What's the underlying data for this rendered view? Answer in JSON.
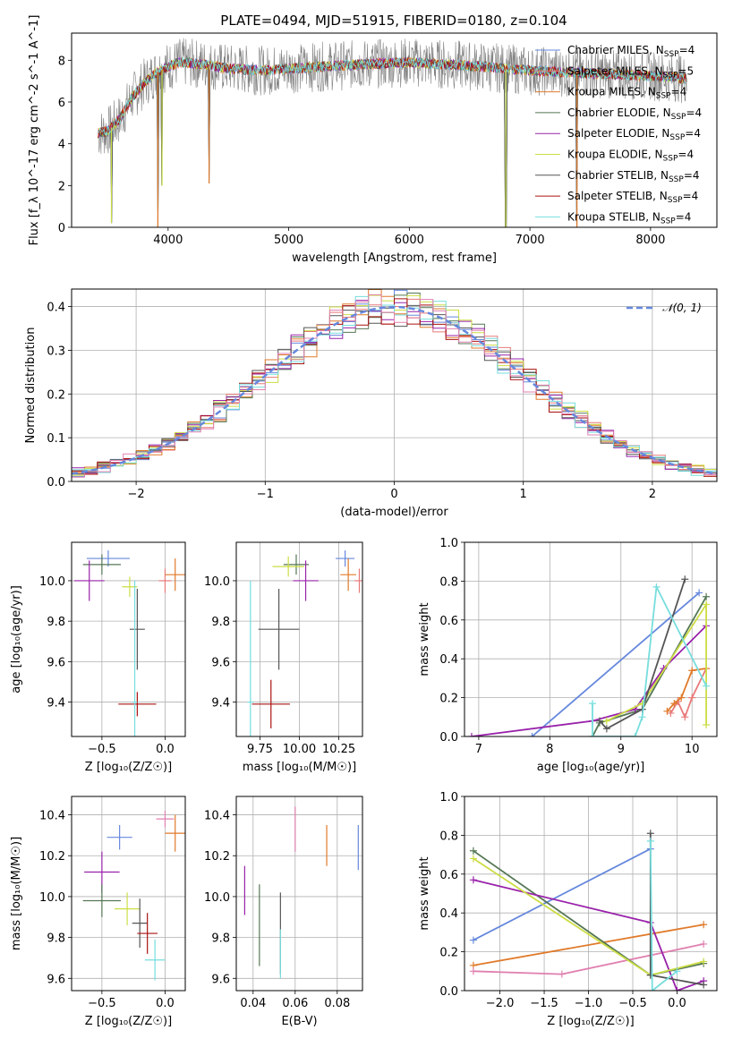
{
  "title": "PLATE=0494, MJD=51915, FIBERID=0180, z=0.104",
  "colors": {
    "Chabrier MILES": "#6688dd",
    "Salpeter MILES": "#e87a7a",
    "Kroupa MILES": "#e07a2a",
    "Chabrier ELODIE": "#557755",
    "Salpeter ELODIE": "#9922aa",
    "Kroupa ELODIE": "#ccdd44",
    "Chabrier STELIB": "#555555",
    "Salpeter STELIB": "#aa1111",
    "Kroupa STELIB": "#77dddd",
    "pink": "#e080b0",
    "gaussian": "#6688dd"
  },
  "chart_data": [
    {
      "type": "line",
      "id": "spectrum",
      "xlabel": "wavelength [Angstrom, rest frame]",
      "ylabel": "Flux [f_λ 10^-17 erg cm^-2 s^-1 A^-1]",
      "xlim": [
        3200,
        8550
      ],
      "ylim": [
        0,
        9.3
      ],
      "xticks": [
        4000,
        5000,
        6000,
        7000,
        8000
      ],
      "yticks": [
        0,
        2,
        4,
        6,
        8
      ],
      "legend_position": "upper right",
      "legend": [
        {
          "model": "Chabrier MILES",
          "nssp": "4"
        },
        {
          "model": "Salpeter MILES",
          "nssp": "5"
        },
        {
          "model": "Kroupa MILES",
          "nssp": "4"
        },
        {
          "model": "Chabrier ELODIE",
          "nssp": "4"
        },
        {
          "model": "Salpeter ELODIE",
          "nssp": "4"
        },
        {
          "model": "Kroupa ELODIE",
          "nssp": "4"
        },
        {
          "model": "Chabrier STELIB",
          "nssp": "4"
        },
        {
          "model": "Salpeter STELIB",
          "nssp": "4"
        },
        {
          "model": "Kroupa STELIB",
          "nssp": "4"
        }
      ],
      "continuum": {
        "x": [
          3420,
          3500,
          3600,
          3700,
          3800,
          3900,
          4000,
          4100,
          4300,
          4500,
          4800,
          5000,
          5300,
          5600,
          6000,
          6300,
          6600,
          7000,
          7400,
          7800,
          8200,
          8300
        ],
        "y": [
          4.5,
          4.6,
          5.2,
          6.2,
          6.9,
          7.4,
          7.7,
          7.9,
          7.8,
          7.6,
          7.5,
          7.6,
          7.7,
          7.8,
          7.9,
          7.8,
          7.7,
          7.5,
          7.4,
          7.3,
          7.2,
          7.1
        ]
      },
      "absorption_features": [
        {
          "x": 3530,
          "y": 0.2
        },
        {
          "x": 3915,
          "y": 0.0
        },
        {
          "x": 3950,
          "y": 2.0
        },
        {
          "x": 4340,
          "y": 2.1
        },
        {
          "x": 6800,
          "y": 0.0
        },
        {
          "x": 7390,
          "y": 0.0
        }
      ]
    },
    {
      "type": "bar",
      "id": "residuals",
      "xlabel": "(data-model)/error",
      "ylabel": "Normed distribution",
      "xlim": [
        -2.5,
        2.5
      ],
      "ylim": [
        0,
        0.44
      ],
      "xticks": [
        -2,
        -1,
        0,
        1,
        2
      ],
      "yticks": [
        0.0,
        0.1,
        0.2,
        0.3,
        0.4
      ],
      "legend": [
        {
          "label": "𝒩(0, 1)"
        }
      ],
      "legend_position": "upper right",
      "bin_width": 0.1,
      "gaussian": {
        "mu": 0,
        "sigma": 1
      }
    },
    {
      "type": "scatter",
      "id": "Z-age",
      "xlabel": "Z [log₁₀(Z/Z☉)]",
      "ylabel": "age [log₁₀(age/yr)]",
      "xlim": [
        -0.74,
        0.16
      ],
      "ylim": [
        9.23,
        10.19
      ],
      "xticks": [
        -0.5,
        0.0
      ],
      "yticks": [
        9.4,
        9.6,
        9.8,
        10.0
      ],
      "points": [
        {
          "model": "Chabrier MILES",
          "x": -0.45,
          "y": 10.11,
          "xerr": 0.17,
          "yerr": 0.04
        },
        {
          "model": "Salpeter MILES",
          "x": 0.0,
          "y": 10.0,
          "xerr": 0.05,
          "yerr": 0.06
        },
        {
          "model": "Kroupa MILES",
          "x": 0.08,
          "y": 10.03,
          "xerr": 0.08,
          "yerr": 0.08
        },
        {
          "model": "Chabrier ELODIE",
          "x": -0.5,
          "y": 10.08,
          "xerr": 0.15,
          "yerr": 0.05
        },
        {
          "model": "Salpeter ELODIE",
          "x": -0.6,
          "y": 10.0,
          "xerr": 0.12,
          "yerr": 0.1
        },
        {
          "model": "Kroupa ELODIE",
          "x": -0.28,
          "y": 9.97,
          "xerr": 0.06,
          "yerr": 0.05
        },
        {
          "model": "Chabrier STELIB",
          "x": -0.22,
          "y": 9.76,
          "xerr": 0.06,
          "yerr": 0.2
        },
        {
          "model": "Salpeter STELIB",
          "x": -0.22,
          "y": 9.39,
          "xerr": 0.15,
          "yerr": 0.06
        },
        {
          "model": "Kroupa STELIB",
          "x": -0.24,
          "y": 9.4,
          "xerr": 0.02,
          "yerr": 0.6
        }
      ]
    },
    {
      "type": "scatter",
      "id": "mass-age",
      "xlabel": "mass [log₁₀(M/M☉)]",
      "ylabel": "",
      "xlim": [
        9.6,
        10.4
      ],
      "ylim": [
        9.23,
        10.19
      ],
      "xticks": [
        9.75,
        10.0,
        10.25
      ],
      "yticks": [
        9.4,
        9.6,
        9.8,
        10.0
      ],
      "points": [
        {
          "model": "Chabrier MILES",
          "x": 10.29,
          "y": 10.11,
          "xerr": 0.06,
          "yerr": 0.04
        },
        {
          "model": "Salpeter MILES",
          "x": 10.38,
          "y": 10.0,
          "xerr": 0.03,
          "yerr": 0.06
        },
        {
          "model": "Kroupa MILES",
          "x": 10.31,
          "y": 10.03,
          "xerr": 0.05,
          "yerr": 0.08
        },
        {
          "model": "Chabrier ELODIE",
          "x": 9.98,
          "y": 10.08,
          "xerr": 0.08,
          "yerr": 0.05
        },
        {
          "model": "Salpeter ELODIE",
          "x": 10.04,
          "y": 10.0,
          "xerr": 0.08,
          "yerr": 0.1
        },
        {
          "model": "Kroupa ELODIE",
          "x": 9.93,
          "y": 10.07,
          "xerr": 0.1,
          "yerr": 0.05
        },
        {
          "model": "Chabrier STELIB",
          "x": 9.87,
          "y": 9.76,
          "xerr": 0.13,
          "yerr": 0.2
        },
        {
          "model": "Salpeter STELIB",
          "x": 9.82,
          "y": 9.39,
          "xerr": 0.12,
          "yerr": 0.12
        },
        {
          "model": "Kroupa STELIB",
          "x": 9.69,
          "y": 9.4,
          "xerr": 0.02,
          "yerr": 0.6
        }
      ]
    },
    {
      "type": "line",
      "id": "age-weight",
      "xlabel": "age [log₁₀(age/yr)]",
      "ylabel": "mass weight",
      "xlim": [
        6.8,
        10.35
      ],
      "ylim": [
        0,
        1.0
      ],
      "xticks": [
        7,
        8,
        9,
        10
      ],
      "yticks": [
        0.0,
        0.2,
        0.4,
        0.6,
        0.8,
        1.0
      ],
      "series": [
        {
          "model": "Chabrier MILES",
          "x": [
            7.75,
            10.1
          ],
          "y": [
            0.0,
            0.74
          ]
        },
        {
          "model": "Salpeter MILES",
          "x": [
            9.7,
            9.8,
            9.9,
            10.0,
            10.2
          ],
          "y": [
            0.12,
            0.18,
            0.1,
            0.2,
            0.35
          ]
        },
        {
          "model": "Kroupa MILES",
          "x": [
            9.65,
            9.75,
            9.85,
            10.0,
            10.2
          ],
          "y": [
            0.13,
            0.17,
            0.2,
            0.34,
            0.35
          ]
        },
        {
          "model": "Chabrier ELODIE",
          "x": [
            8.6,
            8.7,
            9.3,
            10.2
          ],
          "y": [
            0.0,
            0.07,
            0.14,
            0.72
          ]
        },
        {
          "model": "Salpeter ELODIE",
          "x": [
            6.9,
            8.6,
            9.2,
            9.6,
            10.2
          ],
          "y": [
            0.0,
            0.08,
            0.14,
            0.35,
            0.57
          ]
        },
        {
          "model": "Kroupa ELODIE",
          "x": [
            8.8,
            9.3,
            10.2,
            10.2
          ],
          "y": [
            0.08,
            0.17,
            0.68,
            0.06
          ]
        },
        {
          "model": "Chabrier STELIB",
          "x": [
            8.7,
            8.8,
            9.3,
            9.9
          ],
          "y": [
            0.08,
            0.04,
            0.14,
            0.81
          ]
        },
        {
          "model": "Kroupa STELIB",
          "x": [
            8.6,
            8.6,
            9.2,
            9.3,
            9.5,
            10.2
          ],
          "y": [
            0.17,
            0.0,
            0.0,
            0.1,
            0.77,
            0.26
          ]
        }
      ]
    },
    {
      "type": "scatter",
      "id": "Z-mass",
      "xlabel": "Z [log₁₀(Z/Z☉)]",
      "ylabel": "mass [log₁₀(M/M☉)]",
      "xlim": [
        -0.74,
        0.16
      ],
      "ylim": [
        9.54,
        10.49
      ],
      "xticks": [
        -0.5,
        0.0
      ],
      "yticks": [
        9.6,
        9.8,
        10.0,
        10.2,
        10.4
      ],
      "points": [
        {
          "model": "Chabrier MILES",
          "x": -0.36,
          "y": 10.29,
          "xerr": 0.1,
          "yerr": 0.06
        },
        {
          "model": "pink",
          "x": 0.0,
          "y": 10.38,
          "xerr": 0.07,
          "yerr": 0.04
        },
        {
          "model": "Kroupa MILES",
          "x": 0.08,
          "y": 10.31,
          "xerr": 0.08,
          "yerr": 0.09
        },
        {
          "model": "Salpeter ELODIE",
          "x": -0.5,
          "y": 10.12,
          "xerr": 0.14,
          "yerr": 0.1
        },
        {
          "model": "Chabrier ELODIE",
          "x": -0.5,
          "y": 9.98,
          "xerr": 0.15,
          "yerr": 0.08
        },
        {
          "model": "Kroupa ELODIE",
          "x": -0.3,
          "y": 9.94,
          "xerr": 0.1,
          "yerr": 0.08
        },
        {
          "model": "Chabrier STELIB",
          "x": -0.2,
          "y": 9.87,
          "xerr": 0.06,
          "yerr": 0.12
        },
        {
          "model": "Salpeter STELIB",
          "x": -0.14,
          "y": 9.82,
          "xerr": 0.08,
          "yerr": 0.1
        },
        {
          "model": "Kroupa STELIB",
          "x": -0.08,
          "y": 9.69,
          "xerr": 0.08,
          "yerr": 0.1
        }
      ]
    },
    {
      "type": "scatter",
      "id": "EBV-mass",
      "xlabel": "E(B-V)",
      "ylabel": "",
      "xlim": [
        0.032,
        0.092
      ],
      "ylim": [
        9.54,
        10.49
      ],
      "xticks": [
        0.04,
        0.06,
        0.08
      ],
      "yticks": [
        9.6,
        9.8,
        10.0,
        10.2,
        10.4
      ],
      "points": [
        {
          "model": "Salpeter ELODIE",
          "x": 0.036,
          "y": 10.03,
          "xerr": 0,
          "yerr": 0.12
        },
        {
          "model": "Chabrier ELODIE",
          "x": 0.043,
          "y": 9.86,
          "xerr": 0,
          "yerr": 0.2
        },
        {
          "model": "Chabrier STELIB",
          "x": 0.053,
          "y": 9.82,
          "xerr": 0,
          "yerr": 0.2
        },
        {
          "model": "Kroupa STELIB",
          "x": 0.053,
          "y": 9.72,
          "xerr": 0,
          "yerr": 0.12
        },
        {
          "model": "pink",
          "x": 0.06,
          "y": 10.33,
          "xerr": 0,
          "yerr": 0.11
        },
        {
          "model": "Kroupa MILES",
          "x": 0.075,
          "y": 10.25,
          "xerr": 0,
          "yerr": 0.1
        },
        {
          "model": "Chabrier MILES",
          "x": 0.09,
          "y": 10.24,
          "xerr": 0,
          "yerr": 0.11
        }
      ]
    },
    {
      "type": "line",
      "id": "Z-weight",
      "xlabel": "Z [log₁₀(Z/Z☉)]",
      "ylabel": "mass weight",
      "xlim": [
        -2.4,
        0.45
      ],
      "ylim": [
        0,
        1.0
      ],
      "xticks": [
        -2.0,
        -1.5,
        -1.0,
        -0.5,
        0.0
      ],
      "yticks": [
        0.0,
        0.2,
        0.4,
        0.6,
        0.8,
        1.0
      ],
      "series": [
        {
          "model": "Chabrier MILES",
          "x": [
            -2.3,
            -0.3
          ],
          "y": [
            0.26,
            0.73
          ]
        },
        {
          "model": "Kroupa MILES",
          "x": [
            -2.3,
            0.3
          ],
          "y": [
            0.13,
            0.34
          ]
        },
        {
          "model": "pink",
          "x": [
            -2.3,
            -1.3,
            0.3
          ],
          "y": [
            0.1,
            0.085,
            0.24
          ]
        },
        {
          "model": "Chabrier ELODIE",
          "x": [
            -2.3,
            -0.3,
            0.3
          ],
          "y": [
            0.72,
            0.08,
            0.14
          ]
        },
        {
          "model": "Salpeter ELODIE",
          "x": [
            -2.3,
            -0.3,
            0.0,
            0.3
          ],
          "y": [
            0.57,
            0.35,
            0.0,
            0.05
          ]
        },
        {
          "model": "Kroupa ELODIE",
          "x": [
            -2.3,
            -0.3,
            0.3
          ],
          "y": [
            0.68,
            0.08,
            0.15
          ]
        },
        {
          "model": "Chabrier STELIB",
          "x": [
            -0.3,
            -0.3,
            0.3
          ],
          "y": [
            0.81,
            0.08,
            0.03
          ]
        },
        {
          "model": "Kroupa STELIB",
          "x": [
            -0.3,
            -0.28,
            0.0
          ],
          "y": [
            0.77,
            0.0,
            0.1
          ]
        }
      ]
    }
  ]
}
